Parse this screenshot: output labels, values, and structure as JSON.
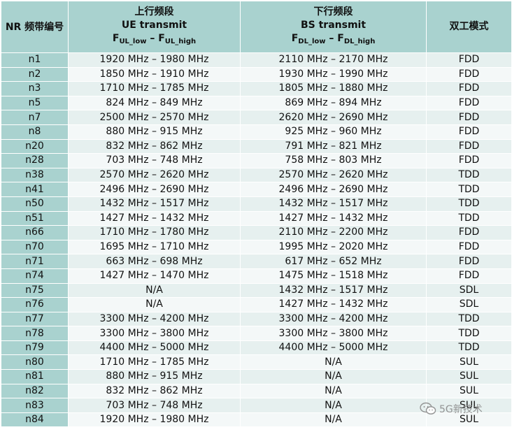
{
  "header": {
    "band": "NR 频带编号",
    "uplink_title": "上行频段",
    "uplink_subtitle": "UE transmit",
    "uplink_low_main": "F",
    "uplink_low_sub": "UL_low",
    "uplink_dash": " – ",
    "uplink_high_main": "F",
    "uplink_high_sub": "UL_high",
    "downlink_title": "下行频段",
    "downlink_subtitle": "BS transmit",
    "downlink_low_main": "F",
    "downlink_low_sub": "DL_low",
    "downlink_dash": " – ",
    "downlink_high_main": "F",
    "downlink_high_sub": "DL_high",
    "duplex": "双工模式"
  },
  "rows": [
    {
      "band": "n1",
      "ul": "1920 MHz – 1980 MHz",
      "dl": "2110 MHz – 2170 MHz",
      "mode": "FDD"
    },
    {
      "band": "n2",
      "ul": "1850 MHz – 1910 MHz",
      "dl": "1930 MHz – 1990 MHz",
      "mode": "FDD"
    },
    {
      "band": "n3",
      "ul": "1710 MHz – 1785 MHz",
      "dl": "1805 MHz – 1880 MHz",
      "mode": "FDD"
    },
    {
      "band": "n5",
      "ul": "824 MHz – 849 MHz",
      "dl": "869 MHz – 894 MHz",
      "mode": "FDD"
    },
    {
      "band": "n7",
      "ul": "2500 MHz – 2570 MHz",
      "dl": "2620 MHz – 2690 MHz",
      "mode": "FDD"
    },
    {
      "band": "n8",
      "ul": "880 MHz – 915 MHz",
      "dl": "925 MHz – 960 MHz",
      "mode": "FDD"
    },
    {
      "band": "n20",
      "ul": "832 MHz – 862 MHz",
      "dl": "791 MHz – 821 MHz",
      "mode": "FDD"
    },
    {
      "band": "n28",
      "ul": "703 MHz – 748 MHz",
      "dl": "758 MHz – 803 MHz",
      "mode": "FDD"
    },
    {
      "band": "n38",
      "ul": "2570 MHz – 2620 MHz",
      "dl": "2570 MHz – 2620 MHz",
      "mode": "TDD"
    },
    {
      "band": "n41",
      "ul": "2496 MHz – 2690 MHz",
      "dl": "2496 MHz – 2690 MHz",
      "mode": "TDD"
    },
    {
      "band": "n50",
      "ul": "1432 MHz – 1517 MHz",
      "dl": "1432 MHz – 1517 MHz",
      "mode": "TDD"
    },
    {
      "band": "n51",
      "ul": "1427 MHz – 1432 MHz",
      "dl": "1427 MHz – 1432 MHz",
      "mode": "TDD"
    },
    {
      "band": "n66",
      "ul": "1710 MHz – 1780 MHz",
      "dl": "2110 MHz – 2200 MHz",
      "mode": "FDD"
    },
    {
      "band": "n70",
      "ul": "1695 MHz – 1710 MHz",
      "dl": "1995 MHz – 2020 MHz",
      "mode": "FDD"
    },
    {
      "band": "n71",
      "ul": "663 MHz – 698 MHz",
      "dl": "617 MHz – 652 MHz",
      "mode": "FDD"
    },
    {
      "band": "n74",
      "ul": "1427 MHz – 1470 MHz",
      "dl": "1475 MHz – 1518 MHz",
      "mode": "FDD"
    },
    {
      "band": "n75",
      "ul": "N/A",
      "dl": "1432 MHz – 1517 MHz",
      "mode": "SDL"
    },
    {
      "band": "n76",
      "ul": "N/A",
      "dl": "1427 MHz – 1432 MHz",
      "mode": "SDL"
    },
    {
      "band": "n77",
      "ul": "3300 MHz – 4200 MHz",
      "dl": "3300 MHz – 4200 MHz",
      "mode": "TDD"
    },
    {
      "band": "n78",
      "ul": "3300 MHz – 3800 MHz",
      "dl": "3300 MHz – 3800 MHz",
      "mode": "TDD"
    },
    {
      "band": "n79",
      "ul": "4400 MHz – 5000 MHz",
      "dl": "4400 MHz – 5000 MHz",
      "mode": "TDD"
    },
    {
      "band": "n80",
      "ul": "1710 MHz – 1785 MHz",
      "dl": "N/A",
      "mode": "SUL"
    },
    {
      "band": "n81",
      "ul": "880 MHz – 915 MHz",
      "dl": "N/A",
      "mode": "SUL"
    },
    {
      "band": "n82",
      "ul": "832 MHz – 862 MHz",
      "dl": "N/A",
      "mode": "SUL"
    },
    {
      "band": "n83",
      "ul": "703 MHz – 748 MHz",
      "dl": "N/A",
      "mode": "SUL"
    },
    {
      "band": "n84",
      "ul": "1920 MHz – 1980 MHz",
      "dl": "N/A",
      "mode": "SUL"
    }
  ],
  "watermark": {
    "text": "5G新技术",
    "icon": "wechat-icon"
  }
}
